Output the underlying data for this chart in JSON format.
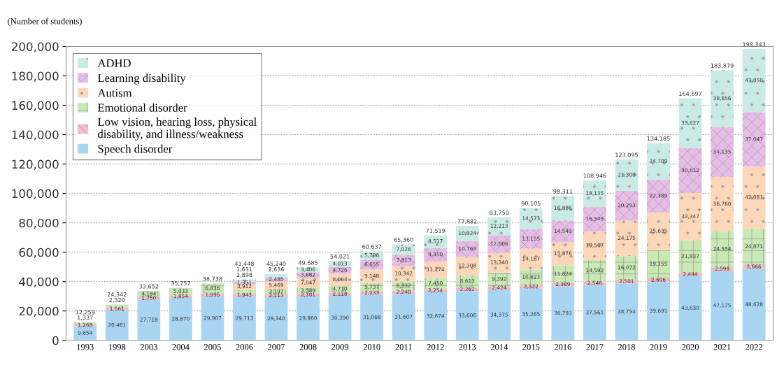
{
  "chart_data": {
    "type": "bar",
    "stacked": true,
    "ylabel": "(Number of students)",
    "categories": [
      "1993",
      "1998",
      "2003",
      "2004",
      "2005",
      "2006",
      "2007",
      "2008",
      "2009",
      "2010",
      "2011",
      "2012",
      "2013",
      "2014",
      "2015",
      "2016",
      "2017",
      "2018",
      "2019",
      "2020",
      "2021",
      "2022"
    ],
    "series": [
      {
        "name": "Speech disorder",
        "color": "#a9d5f3",
        "values": [
          9654,
          20461,
          27718,
          28870,
          29907,
          29713,
          29340,
          29860,
          30390,
          31066,
          31607,
          32674,
          33606,
          34375,
          35265,
          36793,
          37561,
          38754,
          39691,
          43630,
          47175,
          48628
        ],
        "value_labels": [
          "9,654",
          "20,461",
          "27,718",
          "28,870",
          "29,907",
          "29,713",
          "29,340",
          "29,860",
          "30,390",
          "31,066",
          "31,607",
          "32,674",
          "33,606",
          "34,375",
          "35,265",
          "36,793",
          "37,561",
          "38,754",
          "39,691",
          "43,630",
          "47,175",
          "48,628"
        ]
      },
      {
        "name": "Low vision, hearing loss, physical\ndisability, and illness/weakness",
        "color": "#f4bcc8",
        "values": [
          1268,
          1561,
          1750,
          1854,
          1995,
          1943,
          2113,
          2101,
          2118,
          2233,
          2240,
          2254,
          2262,
          2424,
          2322,
          2389,
          2546,
          2501,
          2606,
          2444,
          2599,
          2666
        ],
        "value_labels": [
          "1,268",
          "1,561",
          "1,750",
          "1,854",
          "1,995",
          "1,943",
          "2,113",
          "2,101",
          "2,118",
          "2,233",
          "2,240",
          "2,254",
          "2,262",
          "2,424",
          "2,322",
          "2,389",
          "2,546",
          "2,501",
          "2,606",
          "2,444",
          "2,599",
          "2,666"
        ]
      },
      {
        "name": "Emotional disorder",
        "color": "#c8e8b4",
        "values": [
          1337,
          2320,
          4184,
          5033,
          6836,
          2898,
          3197,
          3589,
          4710,
          5737,
          6332,
          7450,
          8613,
          9392,
          10623,
          11824,
          14592,
          16072,
          19155,
          21837,
          24554,
          24871
        ],
        "value_labels": [
          "1,337",
          "2,320",
          "4,184",
          "5,033",
          "6,836",
          "2,898",
          "3,197",
          "3,589",
          "4,710",
          "5,737",
          "6,332",
          "7,450",
          "8,613",
          "9,392",
          "10,623",
          "11,824",
          "14,592",
          "16,072",
          "19,155",
          "21,837",
          "24,554",
          "24,871"
        ]
      },
      {
        "name": "Autism",
        "color": "#fcd6b8",
        "values": [
          null,
          null,
          null,
          null,
          null,
          3912,
          5469,
          7047,
          8064,
          9148,
          10342,
          11274,
          12308,
          13340,
          14167,
          15876,
          19567,
          24175,
          25635,
          32347,
          36760,
          42081
        ],
        "value_labels": [
          null,
          null,
          null,
          null,
          null,
          "3,912",
          "5,469",
          "7,047",
          "8,064",
          "9,148",
          "10,342",
          "11,274",
          "12,308",
          "13,340",
          "14,167",
          "15,876",
          "19,567",
          "24,175",
          "25,635",
          "32,347",
          "36,760",
          "42,081"
        ]
      },
      {
        "name": "Learning disability",
        "color": "#e8bce8",
        "values": [
          null,
          null,
          null,
          null,
          null,
          1351,
          2485,
          3682,
          4726,
          6655,
          7813,
          9350,
          10769,
          12006,
          13155,
          14543,
          16545,
          20293,
          22389,
          30612,
          34135,
          37047
        ],
        "value_labels": [
          null,
          null,
          null,
          null,
          null,
          "1,351",
          "2,485",
          "3,682",
          "4,726",
          "6,655",
          "7,813",
          "9,350",
          "10,769",
          "12,006",
          "13,155",
          "14,543",
          "16,545",
          "20,293",
          "22,389",
          "30,612",
          "34,135",
          "37,047"
        ]
      },
      {
        "name": "ADHD",
        "color": "#c9ebe4",
        "values": [
          null,
          null,
          null,
          null,
          null,
          1631,
          2636,
          3406,
          4013,
          5798,
          7026,
          8517,
          10324,
          12213,
          14573,
          16886,
          18135,
          21300,
          24709,
          33827,
          38656,
          43050
        ],
        "value_labels": [
          null,
          null,
          null,
          null,
          null,
          "1,631",
          "2,636",
          "3,406",
          "4,013",
          "5,798",
          "7,026",
          "8,517",
          "10,324",
          "12,213",
          "14,573",
          "16,886",
          "18,135",
          "21,300",
          "24,709",
          "33,827",
          "38,656",
          "43,050"
        ]
      }
    ],
    "totals": [
      "12,259",
      "24,342",
      "33,652",
      "35,757",
      "38,738",
      "41,448",
      "45,240",
      "49,685",
      "54,021",
      "60,637",
      "65,360",
      "71,519",
      "77,882",
      "83,750",
      "90,105",
      "98,311",
      "108,946",
      "123,095",
      "134,185",
      "164,697",
      "183,879",
      "198,343"
    ],
    "ylim": [
      0,
      200000
    ],
    "yticks": [
      {
        "value": 0,
        "label": "0"
      },
      {
        "value": 20000,
        "label": "20,000"
      },
      {
        "value": 40000,
        "label": "40,000"
      },
      {
        "value": 60000,
        "label": "60,000"
      },
      {
        "value": 80000,
        "label": "80,000"
      },
      {
        "value": 100000,
        "label": "100,000"
      },
      {
        "value": 120000,
        "label": "120,000"
      },
      {
        "value": 140000,
        "label": "140,000"
      },
      {
        "value": 160000,
        "label": "160,000"
      },
      {
        "value": 180000,
        "label": "180,000"
      },
      {
        "value": 200000,
        "label": "200,000"
      }
    ],
    "grid": "y",
    "legend": "top left"
  }
}
